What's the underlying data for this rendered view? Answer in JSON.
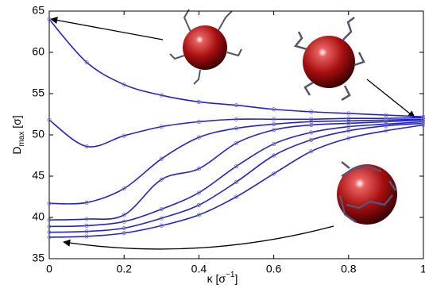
{
  "chart_data": {
    "type": "line",
    "xlabel": [
      "κ [σ",
      "−1",
      "]"
    ],
    "ylabel": [
      "D",
      "max",
      " [σ]"
    ],
    "x": [
      0,
      0.1,
      0.2,
      0.3,
      0.4,
      0.5,
      0.6,
      0.7,
      0.8,
      0.9,
      1
    ],
    "series": [
      {
        "color": "#2323c8",
        "values": [
          64.0,
          58.8,
          56.1,
          54.8,
          54.0,
          53.6,
          53.1,
          52.8,
          52.6,
          52.4,
          52.2
        ]
      },
      {
        "color": "#2323c8",
        "values": [
          51.8,
          48.6,
          49.9,
          51.0,
          51.6,
          51.9,
          51.9,
          51.9,
          52.0,
          52.0,
          52.1
        ]
      },
      {
        "color": "#2323c8",
        "values": [
          41.7,
          41.8,
          43.5,
          47.1,
          49.7,
          50.8,
          51.3,
          51.6,
          51.7,
          51.8,
          51.9
        ]
      },
      {
        "color": "#2323c8",
        "values": [
          39.7,
          39.8,
          40.3,
          44.6,
          45.9,
          49.0,
          50.6,
          51.2,
          51.4,
          51.6,
          51.8
        ]
      },
      {
        "color": "#2323c8",
        "values": [
          38.9,
          39.0,
          39.5,
          41.0,
          43.0,
          46.2,
          48.9,
          50.3,
          51.0,
          51.3,
          51.6
        ]
      },
      {
        "color": "#2323c8",
        "values": [
          38.2,
          38.3,
          38.7,
          39.9,
          41.5,
          44.3,
          47.5,
          49.4,
          50.5,
          51.1,
          51.4
        ]
      },
      {
        "color": "#2323c8",
        "values": [
          37.6,
          37.7,
          38.1,
          39.0,
          40.3,
          42.5,
          45.3,
          48.0,
          49.6,
          50.5,
          51.2
        ]
      }
    ],
    "marker_color": "#7777aa",
    "xlim": [
      0,
      1
    ],
    "xticks": [
      0,
      0.2,
      0.4,
      0.6,
      0.8,
      1
    ],
    "ylim": [
      35,
      65
    ],
    "yticks": [
      35,
      40,
      45,
      50,
      55,
      60,
      65
    ],
    "grid": false
  }
}
